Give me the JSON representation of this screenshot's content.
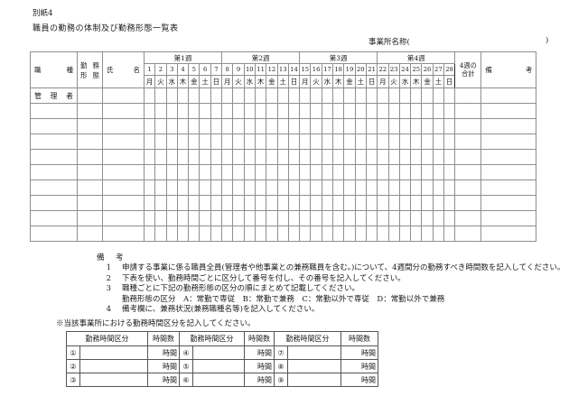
{
  "page": {
    "attachment_label": "別紙4",
    "title": "職員の勤務の体制及び勤務形態一覧表",
    "office_name": {
      "label": "事業所名称(",
      "close": ")"
    }
  },
  "main_table": {
    "headers": {
      "job": "職 種",
      "work_form": [
        "勤 務",
        "形 態"
      ],
      "name": "氏 名",
      "total": [
        "4週の",
        "合計"
      ],
      "remarks": "備 考"
    },
    "weeks": [
      {
        "label": "第1週",
        "day_numbers": [
          "1",
          "2",
          "3",
          "4",
          "5",
          "6",
          "7"
        ],
        "day_names": [
          "月",
          "火",
          "水",
          "木",
          "金",
          "土",
          "日"
        ]
      },
      {
        "label": "第2週",
        "day_numbers": [
          "8",
          "9",
          "10",
          "11",
          "12",
          "13",
          "14"
        ],
        "day_names": [
          "月",
          "火",
          "水",
          "木",
          "金",
          "土",
          "日"
        ]
      },
      {
        "label": "第3週",
        "day_numbers": [
          "15",
          "16",
          "17",
          "18",
          "19",
          "20",
          "21"
        ],
        "day_names": [
          "月",
          "火",
          "水",
          "木",
          "金",
          "土",
          "日"
        ]
      },
      {
        "label": "第4週",
        "day_numbers": [
          "22",
          "23",
          "24",
          "25",
          "26",
          "27",
          "28"
        ],
        "day_names": [
          "月",
          "火",
          "水",
          "木",
          "金",
          "土",
          "日"
        ]
      }
    ],
    "row_jobs": [
      "管 理 者",
      "",
      "",
      "",
      "",
      "",
      "",
      "",
      "",
      ""
    ]
  },
  "notes": {
    "label": "備　考",
    "items": [
      {
        "num": "1",
        "text": "申請する事業に係る職員全員(管理者や他事業との兼務職員を含む。)について、4週間分の勤務すべき時間数を記入してください。"
      },
      {
        "num": "2",
        "text": "下表を使い、勤務時間ごとに区分して番号を付し、その番号を記入してください。"
      },
      {
        "num": "3",
        "text": "職種ごとに下記の勤務形態の区分の順にまとめて記載してください。"
      },
      {
        "num": "",
        "text": "勤務形態の区分　A：常勤で専従　B：常勤で兼務　C：常勤以外で専従　D：常勤以外で兼務"
      },
      {
        "num": "4",
        "text": "備考欄に、兼務状況(兼務職種名等)を記入してください。"
      }
    ]
  },
  "time_table": {
    "caption": "※当該事業所における勤務時間区分を記入してください。",
    "col_headers": [
      "勤務時間区分",
      "時間数"
    ],
    "rows": [
      {
        "entries": [
          {
            "num": "①",
            "hours": "時間"
          },
          {
            "num": "④",
            "hours": "時間"
          },
          {
            "num": "⑦",
            "hours": "時間"
          }
        ]
      },
      {
        "entries": [
          {
            "num": "②",
            "hours": "時間"
          },
          {
            "num": "⑤",
            "hours": "時間"
          },
          {
            "num": "⑧",
            "hours": "時間"
          }
        ]
      },
      {
        "entries": [
          {
            "num": "③",
            "hours": "時間"
          },
          {
            "num": "⑥",
            "hours": "時間"
          },
          {
            "num": "⑨",
            "hours": "時間"
          }
        ]
      }
    ]
  }
}
